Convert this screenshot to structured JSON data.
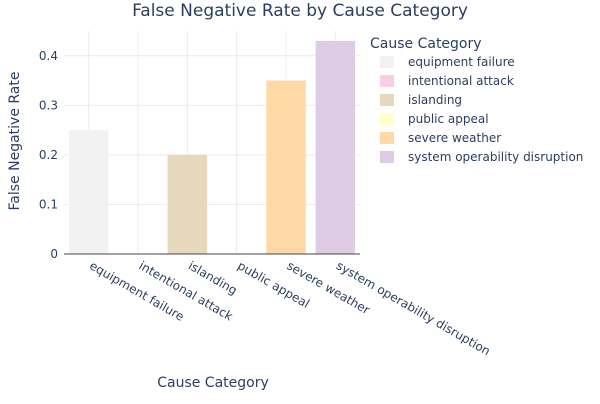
{
  "chart_data": {
    "type": "bar",
    "title": "False Negative Rate by Cause Category",
    "xlabel": "Cause Category",
    "ylabel": "False Negative Rate",
    "ylim": [
      0,
      0.45
    ],
    "yticks": [
      0,
      0.1,
      0.2,
      0.3,
      0.4
    ],
    "ytick_labels": [
      "0",
      "0.1",
      "0.2",
      "0.3",
      "0.4"
    ],
    "grid": true,
    "legend_position": "right",
    "legend_title": "Cause Category",
    "categories": [
      "equipment failure",
      "intentional attack",
      "islanding",
      "public appeal",
      "severe weather",
      "system operability disruption"
    ],
    "values": [
      0.25,
      0,
      0.2,
      0,
      0.35,
      0.43
    ],
    "colors": [
      "#F2F2F2",
      "#FBCDE4",
      "#E5D8BD",
      "#FFFFCC",
      "#FED9A6",
      "#DECBE4"
    ]
  }
}
